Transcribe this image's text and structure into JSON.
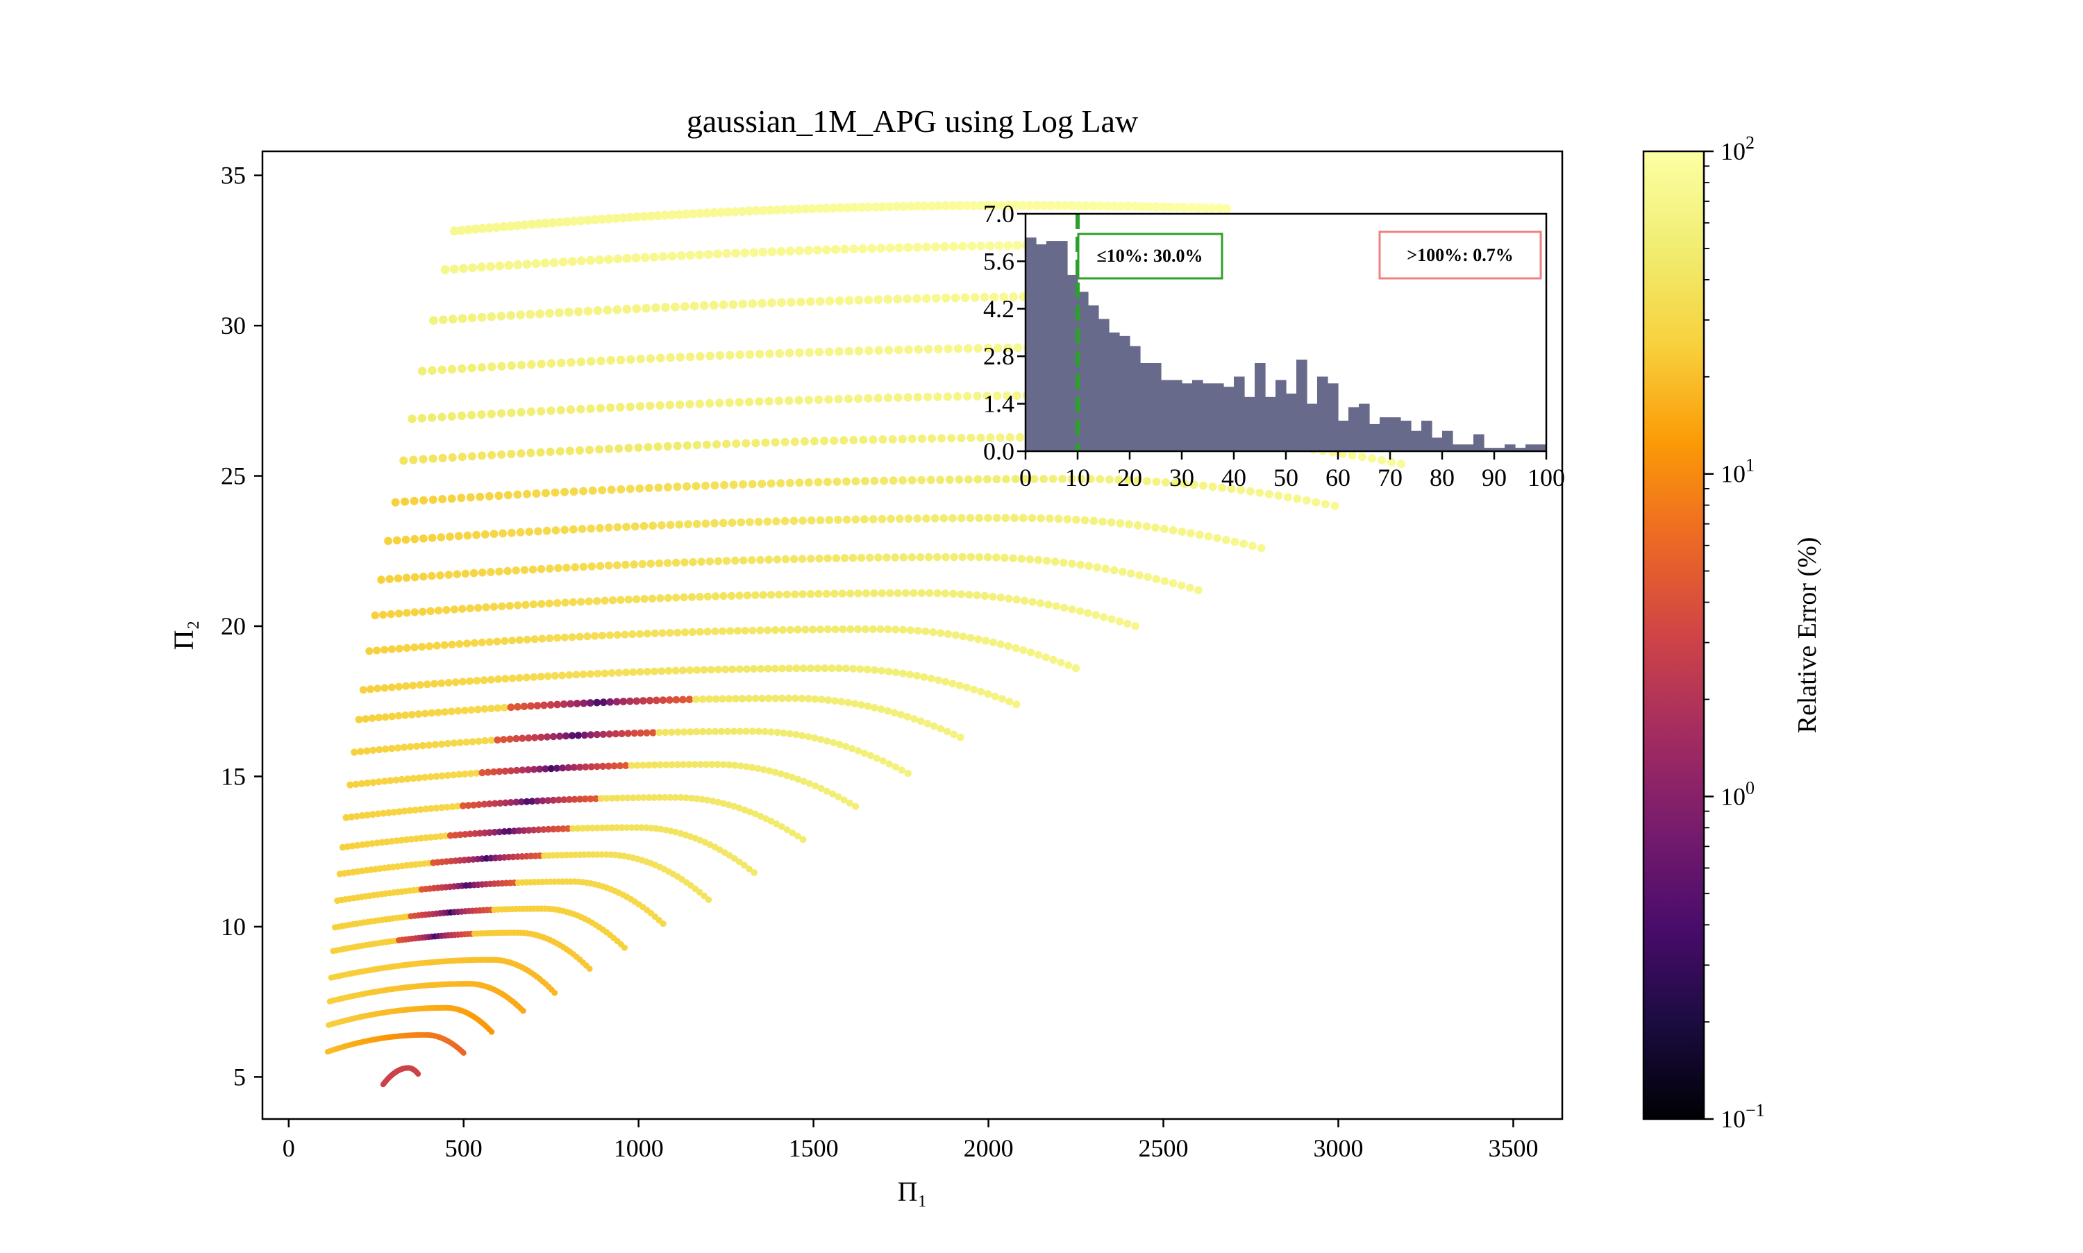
{
  "chart_data": {
    "type": "scatter",
    "title": "gaussian_1M_APG using Log Law",
    "xlabel": "Π₁",
    "ylabel": "Π₂",
    "xlim": [
      -75,
      3640
    ],
    "ylim": [
      3.6,
      35.8
    ],
    "xticks": [
      "0",
      "500",
      "1000",
      "1500",
      "2000",
      "2500",
      "3000",
      "3500"
    ],
    "yticks": [
      "5",
      "10",
      "15",
      "20",
      "25",
      "30",
      "35"
    ],
    "colorbar": {
      "label": "Relative Error (%)",
      "scale": "log",
      "colormap": "inferno",
      "range": [
        0.1,
        100
      ],
      "ticks": [
        {
          "base": "10",
          "exp": "2"
        },
        {
          "base": "10",
          "exp": "1"
        },
        {
          "base": "10",
          "exp": "0"
        },
        {
          "base": "10",
          "exp": "−1"
        }
      ]
    },
    "arcs": [
      {
        "apex_y": 5.3,
        "x_end": 370,
        "y_end": 5.1,
        "err_start": 3,
        "err_end": 3
      },
      {
        "apex_y": 6.4,
        "x_end": 500,
        "y_end": 5.8,
        "err_start": 20,
        "err_end": 6
      },
      {
        "apex_y": 7.3,
        "x_end": 580,
        "y_end": 6.5,
        "err_start": 25,
        "err_end": 12
      },
      {
        "apex_y": 8.1,
        "x_end": 670,
        "y_end": 7.2,
        "err_start": 25,
        "err_end": 15
      },
      {
        "apex_y": 8.9,
        "x_end": 760,
        "y_end": 7.8,
        "err_start": 25,
        "err_end": 18
      },
      {
        "apex_y": 9.8,
        "x_end": 860,
        "y_end": 8.6,
        "err_start": 25,
        "err_end": 22
      },
      {
        "apex_y": 10.6,
        "x_end": 960,
        "y_end": 9.3,
        "err_start": 25,
        "err_end": 25
      },
      {
        "apex_y": 11.5,
        "x_end": 1070,
        "y_end": 10.1,
        "err_start": 25,
        "err_end": 30
      },
      {
        "apex_y": 12.4,
        "x_end": 1200,
        "y_end": 10.9,
        "err_start": 25,
        "err_end": 40
      },
      {
        "apex_y": 13.3,
        "x_end": 1330,
        "y_end": 11.8,
        "err_start": 25,
        "err_end": 45
      },
      {
        "apex_y": 14.3,
        "x_end": 1470,
        "y_end": 12.9,
        "err_start": 25,
        "err_end": 50
      },
      {
        "apex_y": 15.4,
        "x_end": 1620,
        "y_end": 14.0,
        "err_start": 25,
        "err_end": 55
      },
      {
        "apex_y": 16.5,
        "x_end": 1770,
        "y_end": 15.1,
        "err_start": 25,
        "err_end": 60
      },
      {
        "apex_y": 17.6,
        "x_end": 1920,
        "y_end": 16.3,
        "err_start": 25,
        "err_end": 62
      },
      {
        "apex_y": 18.6,
        "x_end": 2080,
        "y_end": 17.4,
        "err_start": 25,
        "err_end": 65
      },
      {
        "apex_y": 19.9,
        "x_end": 2250,
        "y_end": 18.6,
        "err_start": 25,
        "err_end": 68
      },
      {
        "apex_y": 21.1,
        "x_end": 2420,
        "y_end": 20.0,
        "err_start": 25,
        "err_end": 70
      },
      {
        "apex_y": 22.3,
        "x_end": 2600,
        "y_end": 21.2,
        "err_start": 25,
        "err_end": 72
      },
      {
        "apex_y": 23.6,
        "x_end": 2780,
        "y_end": 22.6,
        "err_start": 25,
        "err_end": 75
      },
      {
        "apex_y": 24.9,
        "x_end": 2990,
        "y_end": 24.0,
        "err_start": 25,
        "err_end": 78
      },
      {
        "apex_y": 26.3,
        "x_end": 3180,
        "y_end": 25.4,
        "err_start": 40,
        "err_end": 85
      },
      {
        "apex_y": 27.7,
        "x_end": 3300,
        "y_end": 26.7,
        "err_start": 50,
        "err_end": 90
      },
      {
        "apex_y": 29.3,
        "x_end": 3360,
        "y_end": 28.4,
        "err_start": 55,
        "err_end": 95
      },
      {
        "apex_y": 31.0,
        "x_end": 3370,
        "y_end": 30.5,
        "err_start": 60,
        "err_end": 98
      },
      {
        "apex_y": 32.7,
        "x_end": 3250,
        "y_end": 32.3,
        "err_start": 70,
        "err_end": 100
      },
      {
        "apex_y": 34.0,
        "x_end": 2680,
        "y_end": 33.9,
        "err_start": 75,
        "err_end": 100
      }
    ],
    "inset": {
      "type": "histogram",
      "xlim": [
        0,
        100
      ],
      "ylim": [
        0,
        7.0
      ],
      "xticks": [
        "0",
        "10",
        "20",
        "30",
        "40",
        "50",
        "60",
        "70",
        "80",
        "90",
        "100"
      ],
      "yticks": [
        "0.0",
        "1.4",
        "2.8",
        "4.2",
        "5.6",
        "7.0"
      ],
      "bin_width": 2,
      "values": [
        6.3,
        6.1,
        6.2,
        6.2,
        5.2,
        4.7,
        4.3,
        3.9,
        3.5,
        3.4,
        3.1,
        2.6,
        2.6,
        2.1,
        2.1,
        2.0,
        2.1,
        2.0,
        2.0,
        1.9,
        2.2,
        1.6,
        2.6,
        1.6,
        2.1,
        1.7,
        2.7,
        1.4,
        2.2,
        2.0,
        0.9,
        1.3,
        1.4,
        0.8,
        1.0,
        1.0,
        0.9,
        0.6,
        0.9,
        0.4,
        0.6,
        0.2,
        0.2,
        0.5,
        0.1,
        0.1,
        0.2,
        0.1,
        0.2,
        0.2
      ],
      "threshold": 10,
      "threshold_color": "#2ca02c",
      "bar_color": "#686a8c",
      "badge_low": "≤10%: 30.0%",
      "badge_high": ">100%: 0.7%",
      "badge_low_color": "#2ca02c",
      "badge_high_color": "#f08080"
    }
  }
}
